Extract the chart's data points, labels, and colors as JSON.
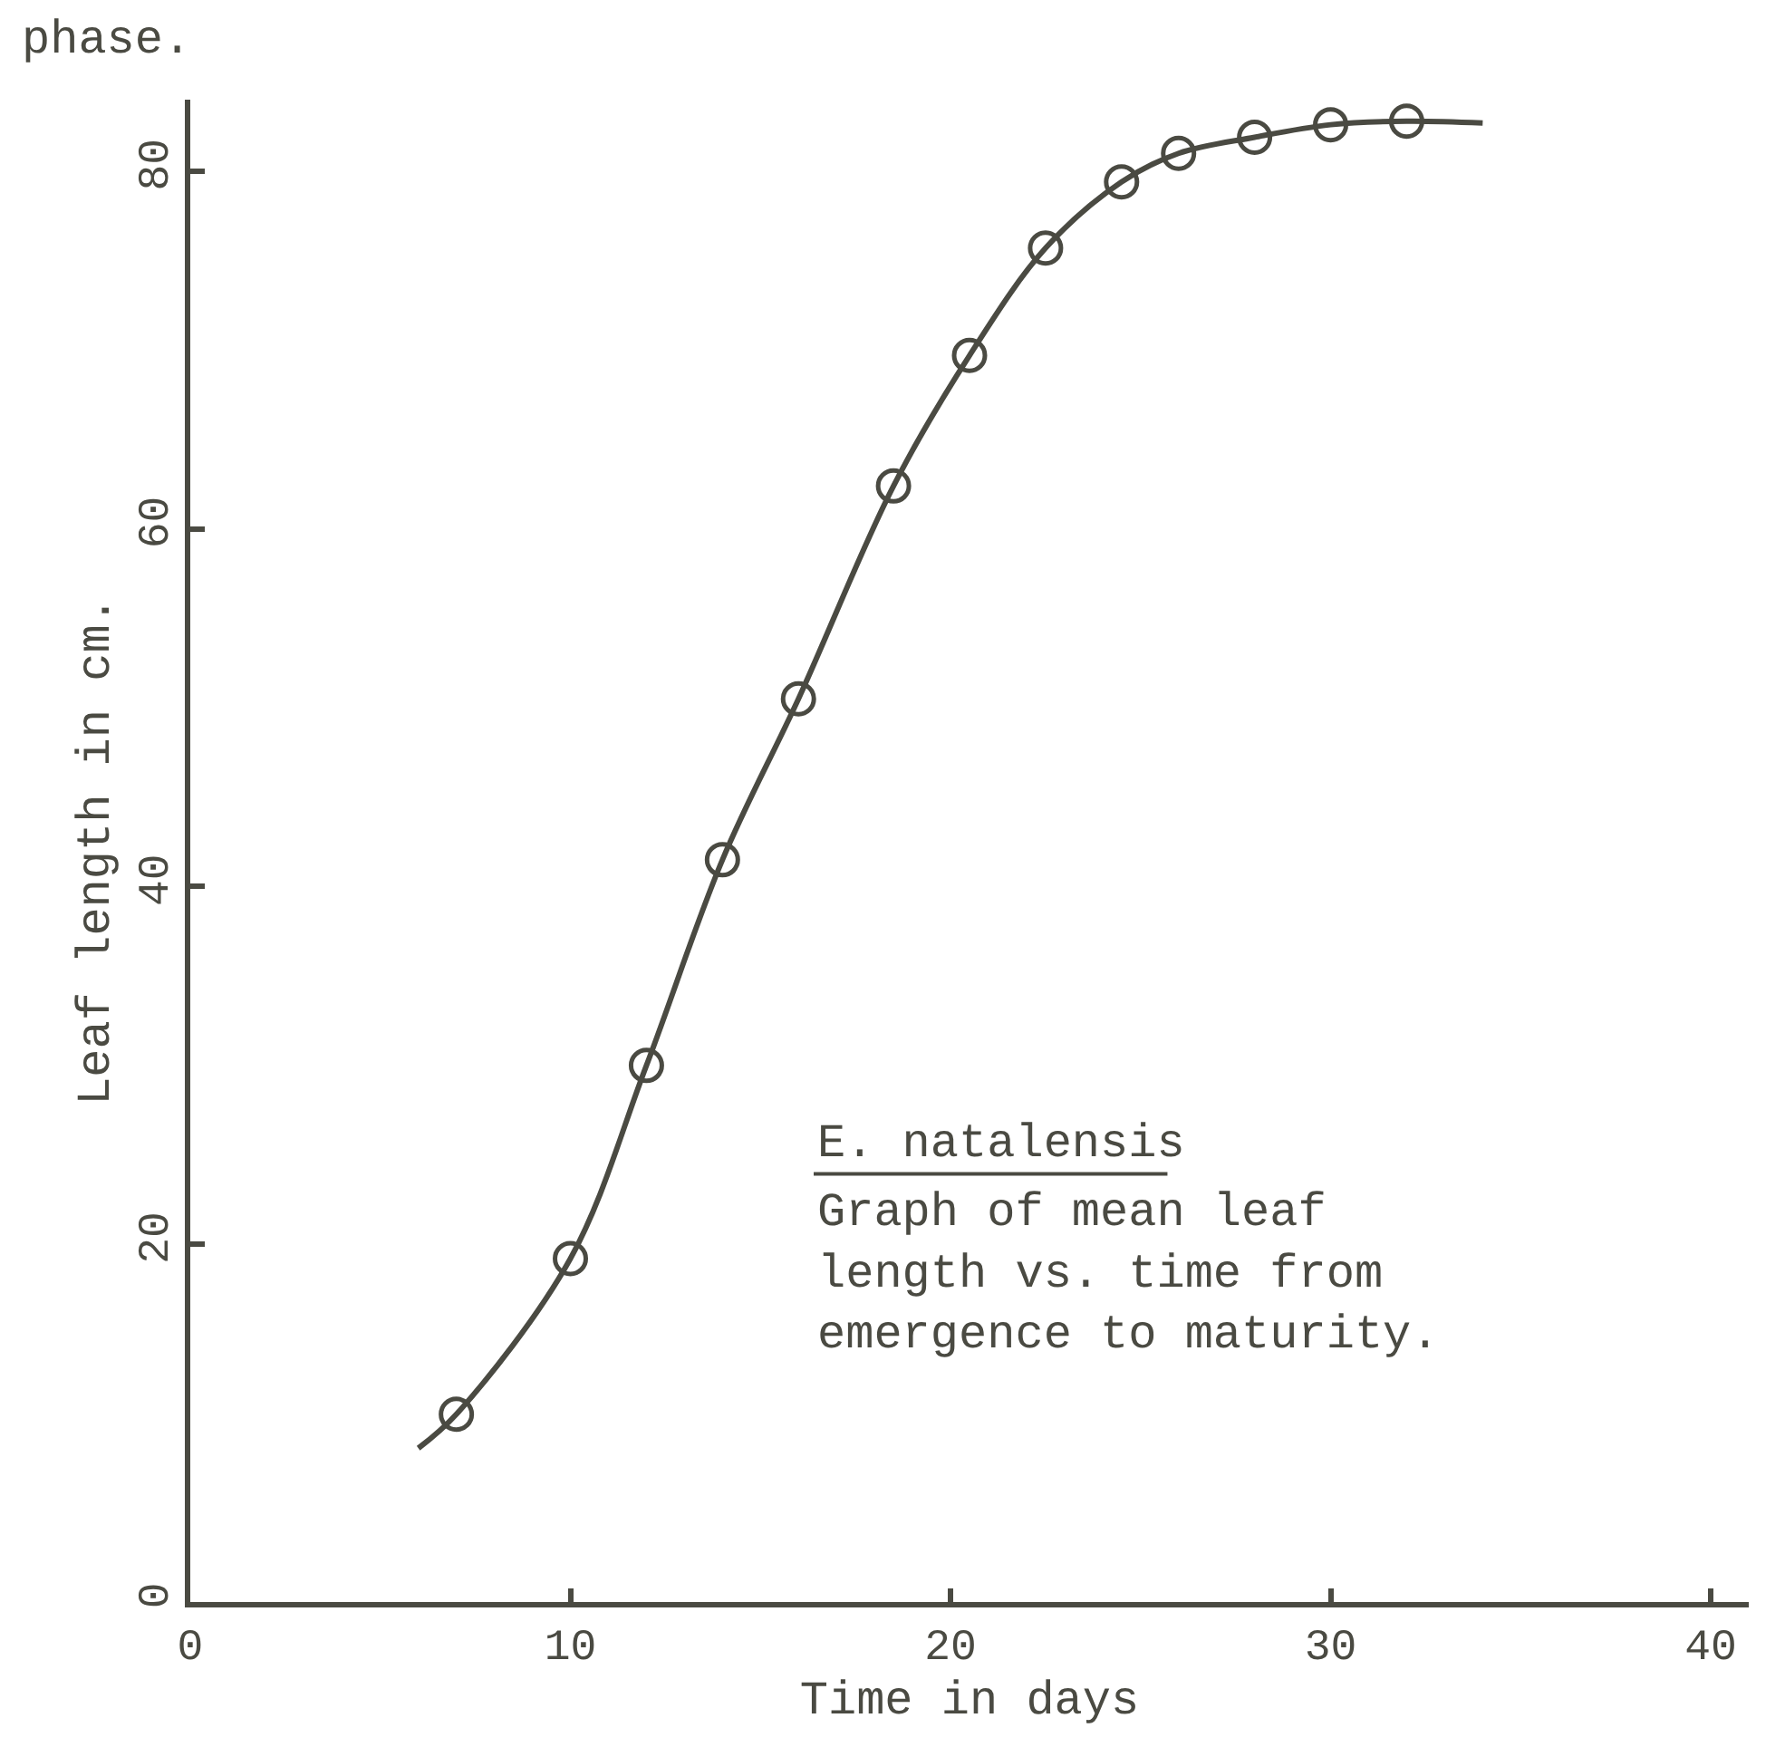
{
  "chart_data": {
    "type": "scatter",
    "xlabel": "Time in days",
    "ylabel": "Leaf length in cm.",
    "annotations": [
      "phase.",
      "E. natalensis",
      "Graph of mean leaf\nlength vs. time from\nemergence to maturity."
    ],
    "series": [
      {
        "color": "#4a4a42",
        "marker": "circle",
        "x": [
          7,
          10,
          12,
          14,
          16,
          18.5,
          20.5,
          22.5,
          24.5,
          26,
          28,
          30,
          32
        ],
        "values": [
          10.5,
          19.2,
          30,
          41.5,
          50.5,
          62.4,
          69.7,
          75.7,
          79.4,
          81,
          81.9,
          82.6,
          82.8
        ]
      },
      {
        "type": "line",
        "color": "#4a4a42",
        "marker": "none",
        "x": [
          6,
          7,
          10,
          12,
          14,
          16,
          18.5,
          20.5,
          22.5,
          24.5,
          26,
          28,
          30,
          32,
          34
        ],
        "values": [
          8.6,
          10.5,
          19.2,
          30,
          41.5,
          50.5,
          62.4,
          69.7,
          75.7,
          79.4,
          81,
          81.9,
          82.6,
          82.8,
          82.7
        ]
      }
    ],
    "xlim": [
      0,
      41
    ],
    "ylim": [
      0,
      84
    ],
    "xticks": [
      0,
      10,
      20,
      30,
      40
    ],
    "yticks": [
      0,
      20,
      40,
      60,
      80
    ],
    "legend": false,
    "line_style": "solid"
  }
}
